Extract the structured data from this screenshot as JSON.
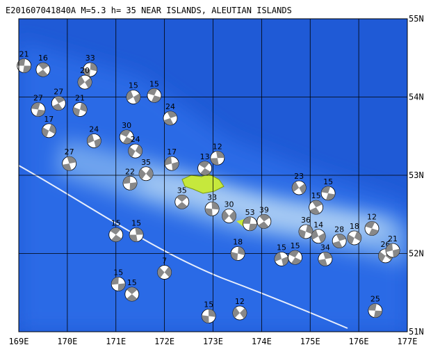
{
  "map": {
    "title": "E201607041840A M=5.3 h= 35 NEAR ISLANDS, ALEUTIAN ISLANDS",
    "lonlim": [
      169,
      177
    ],
    "latlim": [
      51,
      55
    ],
    "lon_ticks": [
      {
        "value": 169,
        "label": "169E"
      },
      {
        "value": 170,
        "label": "170E"
      },
      {
        "value": 171,
        "label": "171E"
      },
      {
        "value": 172,
        "label": "172E"
      },
      {
        "value": 173,
        "label": "173E"
      },
      {
        "value": 174,
        "label": "174E"
      },
      {
        "value": 175,
        "label": "175E"
      },
      {
        "value": 176,
        "label": "176E"
      },
      {
        "value": 177,
        "label": "177E"
      }
    ],
    "lat_ticks": [
      {
        "value": 51,
        "label": "51N"
      },
      {
        "value": 52,
        "label": "52N"
      },
      {
        "value": 53,
        "label": "53N"
      },
      {
        "value": 54,
        "label": "54N"
      },
      {
        "value": 55,
        "label": "55N"
      }
    ],
    "events": [
      {
        "label": "21",
        "lon": 169.11,
        "lat": 54.4
      },
      {
        "label": "16",
        "lon": 169.5,
        "lat": 54.35
      },
      {
        "label": "33",
        "lon": 170.47,
        "lat": 54.35
      },
      {
        "label": "20",
        "lon": 170.36,
        "lat": 54.19
      },
      {
        "label": "27",
        "lon": 169.4,
        "lat": 53.84
      },
      {
        "label": "27",
        "lon": 169.82,
        "lat": 53.92
      },
      {
        "label": "21",
        "lon": 170.26,
        "lat": 53.84
      },
      {
        "label": "15",
        "lon": 171.36,
        "lat": 54.0
      },
      {
        "label": "15",
        "lon": 171.79,
        "lat": 54.02
      },
      {
        "label": "24",
        "lon": 172.12,
        "lat": 53.73
      },
      {
        "label": "17",
        "lon": 169.62,
        "lat": 53.57
      },
      {
        "label": "24",
        "lon": 170.55,
        "lat": 53.44
      },
      {
        "label": "30",
        "lon": 171.22,
        "lat": 53.49
      },
      {
        "label": "27",
        "lon": 170.04,
        "lat": 53.15
      },
      {
        "label": "24",
        "lon": 171.4,
        "lat": 53.31
      },
      {
        "label": "17",
        "lon": 172.15,
        "lat": 53.15
      },
      {
        "label": "13",
        "lon": 172.83,
        "lat": 53.09
      },
      {
        "label": "12",
        "lon": 173.09,
        "lat": 53.22
      },
      {
        "label": "35",
        "lon": 171.62,
        "lat": 53.02
      },
      {
        "label": "22",
        "lon": 171.29,
        "lat": 52.9
      },
      {
        "label": "35",
        "lon": 172.36,
        "lat": 52.66
      },
      {
        "label": "33",
        "lon": 172.98,
        "lat": 52.57
      },
      {
        "label": "30",
        "lon": 173.33,
        "lat": 52.48
      },
      {
        "label": "53",
        "lon": 173.76,
        "lat": 52.38
      },
      {
        "label": "39",
        "lon": 174.05,
        "lat": 52.41
      },
      {
        "label": "18",
        "lon": 173.51,
        "lat": 52.0
      },
      {
        "label": "23",
        "lon": 174.77,
        "lat": 52.84
      },
      {
        "label": "15",
        "lon": 175.37,
        "lat": 52.77
      },
      {
        "label": "15",
        "lon": 175.12,
        "lat": 52.59
      },
      {
        "label": "36",
        "lon": 174.91,
        "lat": 52.28
      },
      {
        "label": "14",
        "lon": 175.17,
        "lat": 52.22
      },
      {
        "label": "12",
        "lon": 176.27,
        "lat": 52.32
      },
      {
        "label": "28",
        "lon": 175.6,
        "lat": 52.16
      },
      {
        "label": "18",
        "lon": 175.91,
        "lat": 52.2
      },
      {
        "label": "15",
        "lon": 174.41,
        "lat": 51.93
      },
      {
        "label": "15",
        "lon": 174.69,
        "lat": 51.95
      },
      {
        "label": "34",
        "lon": 175.31,
        "lat": 51.93
      },
      {
        "label": "26",
        "lon": 176.55,
        "lat": 51.97
      },
      {
        "label": "21",
        "lon": 176.7,
        "lat": 52.04
      },
      {
        "label": "15",
        "lon": 171.0,
        "lat": 52.24
      },
      {
        "label": "15",
        "lon": 171.42,
        "lat": 52.24
      },
      {
        "label": "7",
        "lon": 172.0,
        "lat": 51.76
      },
      {
        "label": "15",
        "lon": 171.05,
        "lat": 51.61
      },
      {
        "label": "15",
        "lon": 171.33,
        "lat": 51.48
      },
      {
        "label": "15",
        "lon": 172.91,
        "lat": 51.2
      },
      {
        "label": "12",
        "lon": 173.55,
        "lat": 51.24
      },
      {
        "label": "25",
        "lon": 176.34,
        "lat": 51.27
      }
    ]
  }
}
